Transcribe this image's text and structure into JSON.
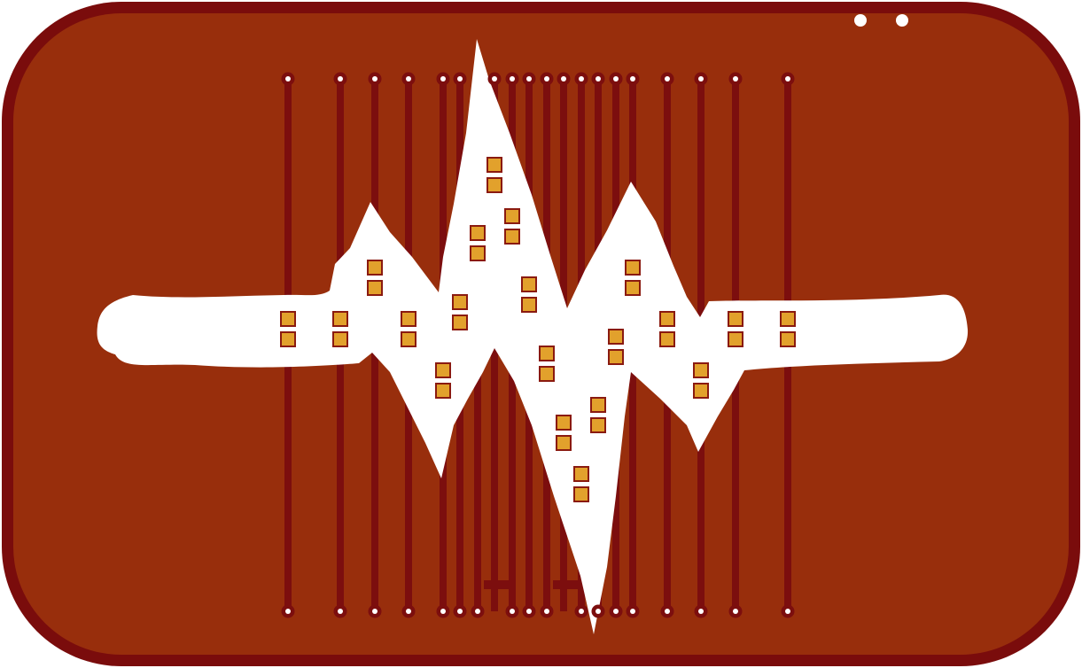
{
  "colors": {
    "background": "#ffffff",
    "board_edge": "#7a0c0c",
    "copper_fill": "#982e0c",
    "trace": "#7c0e0e",
    "via_ring": "#7c0e0e",
    "via_hole": "#ffffff",
    "pad_fill": "#e2a12c",
    "pad_outline": "#8a1a10",
    "window": "#ffffff"
  },
  "icons": {
    "mounting_hole": "circle",
    "via": "ring",
    "led_pad": "square"
  }
}
